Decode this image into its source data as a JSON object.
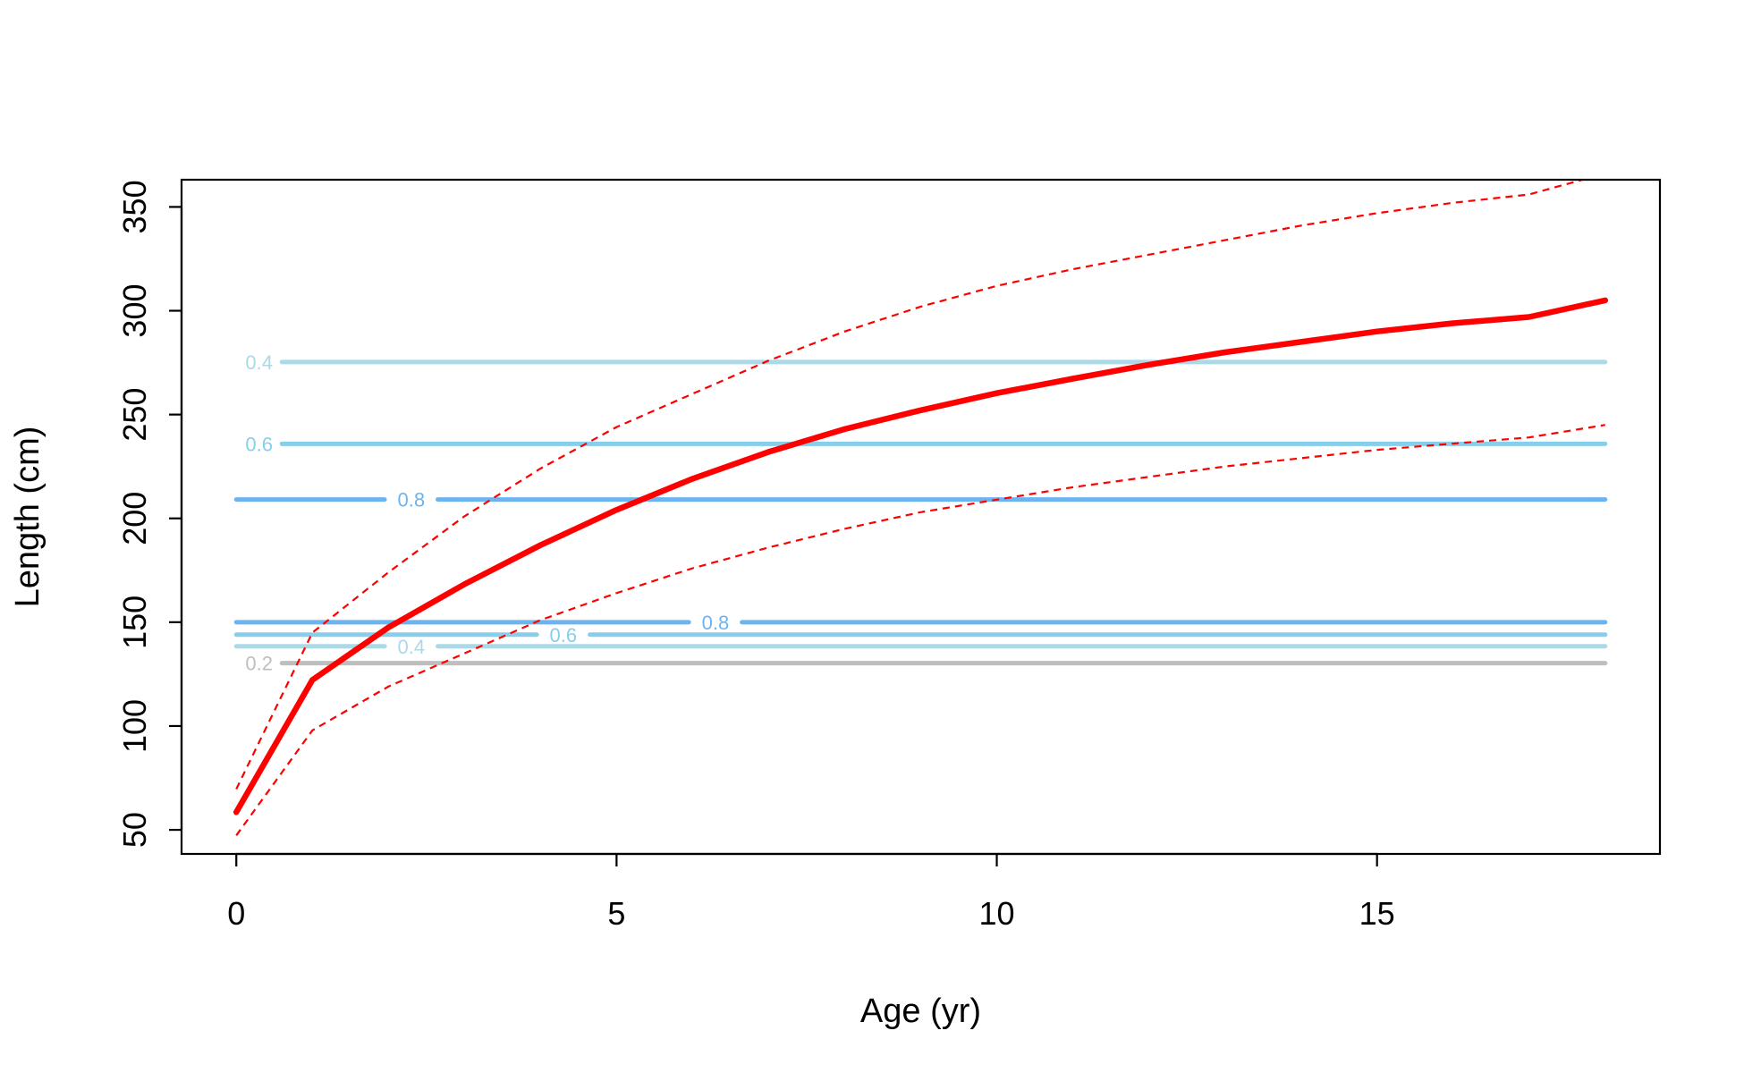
{
  "chart_data": {
    "type": "line",
    "title": "",
    "xlabel": "Age (yr)",
    "ylabel": "Length (cm)",
    "xlim": [
      -0.72,
      18.72
    ],
    "ylim": [
      38.4,
      363.1
    ],
    "xticks": [
      0,
      5,
      10,
      15
    ],
    "xtick_labels": [
      "0",
      "5",
      "10",
      "15"
    ],
    "yticks": [
      50,
      100,
      150,
      200,
      250,
      300,
      350
    ],
    "ytick_labels": [
      "50",
      "100",
      "150",
      "200",
      "250",
      "300",
      "350"
    ],
    "grid": false,
    "legend": "none",
    "series": [
      {
        "role": "mean",
        "style": "solid-thick",
        "color": "#ff0000",
        "x": [
          0,
          1,
          2,
          3,
          4,
          5,
          6,
          7,
          8,
          9,
          10,
          11,
          12,
          13,
          14,
          15,
          16,
          17,
          18
        ],
        "y": [
          58.5,
          122.2,
          147.5,
          168.3,
          187.1,
          204.1,
          219.1,
          232.0,
          243.0,
          252.1,
          260.3,
          267.3,
          274.0,
          280.0,
          285.0,
          290.0,
          294.0,
          297.0,
          305.0
        ]
      },
      {
        "role": "upper-bound",
        "style": "dashed",
        "color": "#ff0000",
        "x": [
          0,
          1,
          2,
          3,
          4,
          5,
          6,
          7,
          8,
          9,
          10,
          11,
          12,
          13,
          14,
          15,
          16,
          17,
          17.7
        ],
        "y": [
          69.6,
          145.0,
          174.0,
          201.0,
          224.0,
          244.0,
          260.0,
          276.0,
          290.0,
          302.0,
          312.0,
          320.0,
          327.0,
          334.0,
          341.0,
          347.0,
          352.0,
          356.0,
          363.1
        ]
      },
      {
        "role": "lower-bound",
        "style": "dashed",
        "color": "#ff0000",
        "x": [
          0,
          1,
          2,
          3,
          4,
          5,
          6,
          7,
          8,
          9,
          10,
          11,
          12,
          13,
          14,
          15,
          16,
          17,
          18
        ],
        "y": [
          47.3,
          97.9,
          119.0,
          135.0,
          151.0,
          164.0,
          176.0,
          186.0,
          195.0,
          203.0,
          209.0,
          215.0,
          220.0,
          225.0,
          229.0,
          233.0,
          236.0,
          239.0,
          245.0
        ]
      }
    ],
    "reference_lines": [
      {
        "y": 275.3,
        "label": "0.4",
        "color": "#add8e6",
        "x_from": 0.6,
        "x_to": 18,
        "label_x": 0.3
      },
      {
        "y": 235.9,
        "label": "0.6",
        "color": "#87ceeb",
        "x_from": 0.6,
        "x_to": 18,
        "label_x": 0.3
      },
      {
        "y": 209.1,
        "label": "0.8",
        "color": "#6cb4f0",
        "x_from": 0,
        "x_to": 18,
        "label_x": 2.3,
        "gap": [
          1.95,
          2.65
        ]
      },
      {
        "y": 150.0,
        "label": "0.8",
        "color": "#6cb4f0",
        "x_from": 0,
        "x_to": 18,
        "label_x": 6.3,
        "gap": [
          5.95,
          6.65
        ]
      },
      {
        "y": 144.0,
        "label": "0.6",
        "color": "#87ceeb",
        "x_from": 0,
        "x_to": 18,
        "label_x": 4.3,
        "gap": [
          3.95,
          4.65
        ]
      },
      {
        "y": 138.4,
        "label": "0.4",
        "color": "#add8e6",
        "x_from": 0,
        "x_to": 18,
        "label_x": 2.3,
        "gap": [
          1.95,
          2.65
        ]
      },
      {
        "y": 130.3,
        "label": "0.2",
        "color": "#bebebe",
        "x_from": 0.6,
        "x_to": 18,
        "label_x": 0.3
      }
    ]
  }
}
